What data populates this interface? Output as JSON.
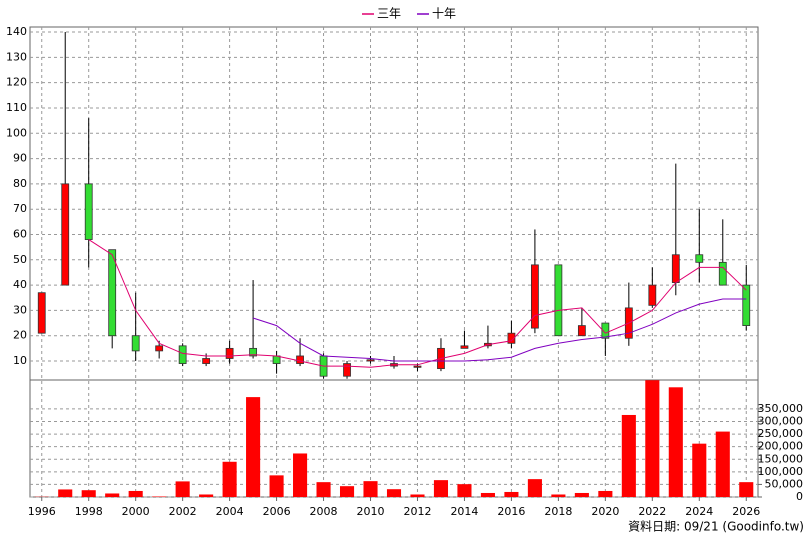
{
  "chart_data": {
    "type": "candlestick",
    "x": [
      1996,
      1997,
      1998,
      1999,
      2000,
      2001,
      2002,
      2003,
      2004,
      2005,
      2006,
      2007,
      2008,
      2009,
      2010,
      2011,
      2012,
      2013,
      2014,
      2015,
      2016,
      2017,
      2018,
      2019,
      2020,
      2021,
      2022,
      2023,
      2024,
      2025,
      2026
    ],
    "open": [
      21,
      40,
      80,
      54,
      20,
      14,
      16,
      9,
      11,
      15,
      12,
      9,
      12,
      4,
      10,
      8,
      7.5,
      7,
      15,
      16,
      17,
      23,
      48,
      20,
      25,
      19,
      32,
      41,
      52,
      49,
      40
    ],
    "high": [
      37,
      140,
      106,
      54,
      37,
      18,
      17,
      13,
      18,
      42,
      14,
      19,
      13,
      10,
      12,
      12,
      9,
      19,
      22,
      24,
      26,
      62,
      48,
      31,
      25,
      41,
      47,
      88,
      70,
      66,
      48
    ],
    "low": [
      21,
      40,
      47,
      15,
      10,
      11,
      8,
      8,
      9,
      11,
      5,
      8,
      3,
      3,
      9,
      7,
      6,
      6,
      15,
      15,
      15,
      21,
      20,
      20,
      12,
      16,
      31,
      36,
      41,
      40,
      22
    ],
    "close": [
      37,
      80,
      58,
      20,
      14,
      16,
      9,
      11,
      15,
      12,
      9,
      12,
      4,
      9,
      10.5,
      9,
      8,
      15,
      16,
      17,
      21,
      48,
      20,
      24,
      19,
      31,
      40,
      52,
      49,
      40,
      24
    ],
    "up_color": "#ff0000",
    "down_color": "#33dd33",
    "series": [
      {
        "name": "三年",
        "color": "#e0006f",
        "values": [
          null,
          null,
          58,
          52,
          30,
          17,
          13,
          12,
          12,
          12.5,
          12,
          10,
          8,
          8,
          7.5,
          8.5,
          8.5,
          11,
          13,
          16.5,
          18,
          28,
          30,
          31,
          21,
          25,
          30,
          41,
          47,
          47,
          38
        ]
      },
      {
        "name": "十年",
        "color": "#8000c0",
        "values": [
          null,
          null,
          null,
          null,
          null,
          null,
          null,
          null,
          null,
          27,
          24,
          17,
          12,
          11.5,
          11,
          10,
          10,
          10,
          10,
          10.5,
          11.5,
          15,
          17,
          18.5,
          19.5,
          21,
          24.5,
          29,
          32.5,
          34.5,
          34.5
        ]
      }
    ],
    "volume": {
      "axis": "y2",
      "color": "#ff0000",
      "values": [
        1000,
        30000,
        27000,
        14000,
        24000,
        2000,
        62000,
        10000,
        140000,
        397000,
        86000,
        173000,
        59000,
        43000,
        63000,
        31000,
        10000,
        67000,
        51000,
        16000,
        20000,
        71000,
        10000,
        16000,
        24000,
        326000,
        464000,
        436000,
        212000,
        260000,
        59000
      ]
    },
    "xlim": [
      1995.5,
      2026.5
    ],
    "xticks": [
      1996,
      1998,
      2000,
      2002,
      2004,
      2006,
      2008,
      2010,
      2012,
      2014,
      2016,
      2018,
      2020,
      2022,
      2024,
      2026
    ],
    "ylim": [
      2.5,
      142
    ],
    "yticks": [
      10,
      20,
      30,
      40,
      50,
      60,
      70,
      80,
      90,
      100,
      110,
      120,
      130,
      140
    ],
    "y2lim": [
      0,
      465000
    ],
    "y2ticks": [
      0,
      {
        "value": 50000,
        "label": "50,000"
      },
      {
        "value": 100000,
        "label": "100,000"
      },
      {
        "value": 150000,
        "label": "150,000"
      },
      {
        "value": 200000,
        "label": "200,000"
      },
      {
        "value": 250000,
        "label": "250,000"
      },
      {
        "value": 300000,
        "label": "300,000"
      },
      {
        "value": 350000,
        "label": "350,000"
      }
    ],
    "grid": true,
    "legend": "top",
    "footnote": "資料日期: 09/21  (Goodinfo.tw)"
  }
}
